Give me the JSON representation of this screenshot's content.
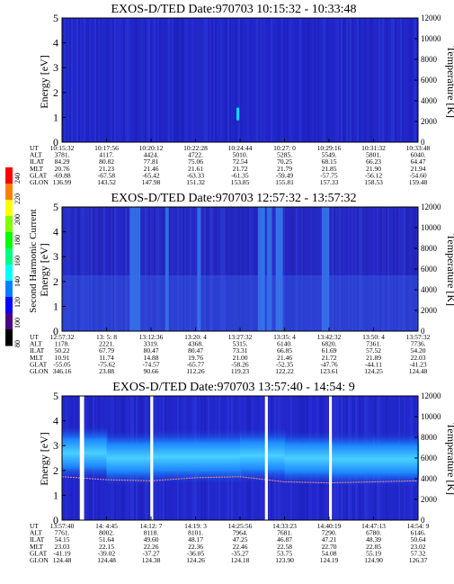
{
  "page": {
    "colorbar": {
      "label": "Second Harmonic Current",
      "ticks": [
        "240",
        "220",
        "200",
        "180",
        "160",
        "140",
        "120",
        "100",
        "80"
      ],
      "colors": [
        "#ff0000",
        "#ff8000",
        "#ffff00",
        "#80ff00",
        "#00ff00",
        "#00ff80",
        "#00ffff",
        "#0080ff",
        "#0000ff",
        "#4b0082",
        "#000000"
      ]
    },
    "panels": [
      {
        "title": "EXOS-D/TED   Date:970703  10:15:32 - 10:33:48",
        "ylabel_left": "Energy [eV]",
        "ylabel_right": "Temperature [K]",
        "y_ticks_left": [
          "0",
          "1",
          "2",
          "3",
          "4",
          "5"
        ],
        "y_ticks_right": [
          "0",
          "2000",
          "4000",
          "6000",
          "8000",
          "10000",
          "12000"
        ],
        "row_labels": [
          "UT",
          "ALT",
          "ILAT",
          "MLT",
          "GLAT",
          "GLON"
        ],
        "columns": [
          [
            "10:15:32",
            "3781.",
            "84.29",
            "20.76",
            "-69.88",
            "136.99"
          ],
          [
            "10:17:56",
            "4117.",
            "80.82",
            "21.23",
            "-67.58",
            "143.52"
          ],
          [
            "10:20:12",
            "4424.",
            "77.81",
            "21.46",
            "-65.42",
            "147.98"
          ],
          [
            "10:22:28",
            "4722.",
            "75.06",
            "21.61",
            "-63.33",
            "151.32"
          ],
          [
            "10:24:44",
            "5010.",
            "72.54",
            "21.72",
            "-61.35",
            "153.85"
          ],
          [
            "10:27: 0",
            "5285.",
            "70.25",
            "21.79",
            "-59.49",
            "155.81"
          ],
          [
            "10:29:16",
            "5549.",
            "68.15",
            "21.85",
            "-57.75",
            "157.33"
          ],
          [
            "10:31:32",
            "5801.",
            "66.23",
            "21.90",
            "-56.12",
            "158.53"
          ],
          [
            "10:33:48",
            "6040.",
            "64.47",
            "21.94",
            "-54.60",
            "159.48"
          ]
        ]
      },
      {
        "title": "EXOS-D/TED   Date:970703  12:57:32 - 13:57:32",
        "ylabel_left": "Energy [eV]",
        "ylabel_right": "Temperature [K]",
        "y_ticks_left": [
          "0",
          "1",
          "2",
          "3",
          "4",
          "5"
        ],
        "y_ticks_right": [
          "0",
          "2000",
          "4000",
          "6000",
          "8000",
          "10000",
          "12000"
        ],
        "row_labels": [
          "UT",
          "ALT",
          "ILAT",
          "MLT",
          "GLAT",
          "GLON"
        ],
        "columns": [
          [
            "12:57:32",
            "1178.",
            "50.22",
            "10.91",
            "-55.05",
            "346.16"
          ],
          [
            "13: 5: 8",
            "2221.",
            "67.79",
            "11.74",
            "-75.62",
            "23.88"
          ],
          [
            "13:12:36",
            "3319.",
            "80.47",
            "14.88",
            "-74.57",
            "90.66"
          ],
          [
            "13:20: 4",
            "4368.",
            "80.47",
            "19.76",
            "-65.77",
            "112.26"
          ],
          [
            "13:27:32",
            "5315.",
            "73.31",
            "21.00",
            "-58.26",
            "119.23"
          ],
          [
            "13:35: 4",
            "6140.",
            "66.85",
            "21.46",
            "-52.35",
            "122.22"
          ],
          [
            "13:42:32",
            "6820.",
            "61.69",
            "21.72",
            "-47.76",
            "123.61"
          ],
          [
            "13:50: 4",
            "7361.",
            "57.52",
            "21.89",
            "-44.11",
            "124.25"
          ],
          [
            "13:57:32",
            "7736.",
            "54.20",
            "22.03",
            "-41.23",
            "124.48"
          ]
        ]
      },
      {
        "title": "EXOS-D/TED   Date:970703  13:57:40 - 14:54: 9",
        "ylabel_left": "Energy [eV]",
        "ylabel_right": "Temperature [K]",
        "y_ticks_left": [
          "0",
          "1",
          "2",
          "3",
          "4",
          "5"
        ],
        "y_ticks_right": [
          "0",
          "2000",
          "4000",
          "6000",
          "8000",
          "10000",
          "12000"
        ],
        "row_labels": [
          "UT",
          "ALT",
          "ILAT",
          "MLT",
          "GLAT",
          "GLON"
        ],
        "columns": [
          [
            "13:57:40",
            "7761.",
            "54.15",
            "23.03",
            "-41.19",
            "124.48"
          ],
          [
            "14: 4:45",
            "8002.",
            "51.64",
            "22.15",
            "-39.02",
            "124.48"
          ],
          [
            "14:12: 7",
            "8118.",
            "49.60",
            "22.26",
            "-37.27",
            "124.38"
          ],
          [
            "14:19: 3",
            "8101.",
            "48.17",
            "22.36",
            "-36.05",
            "124.26"
          ],
          [
            "14:25:56",
            "7964.",
            "47.25",
            "22.46",
            "-35.27",
            "124.18"
          ],
          [
            "14:33:23",
            "7681.",
            "46.87",
            "22.58",
            "53.75",
            "123.90"
          ],
          [
            "14:40:19",
            "7290.",
            "47.21",
            "22.70",
            "54.08",
            "124.19"
          ],
          [
            "14:47:13",
            "6780.",
            "48.39",
            "22.85",
            "55.19",
            "124.90"
          ],
          [
            "14:54: 9",
            "6146.",
            "50.64",
            "23.02",
            "57.32",
            "126.37"
          ]
        ]
      }
    ]
  },
  "chart_data": [
    {
      "type": "heatmap",
      "title": "EXOS-D/TED   Date:970703  10:15:32 - 10:33:48",
      "xlabel": "UT",
      "ylabel": "Energy [eV]",
      "ylabel_right": "Temperature [K]",
      "x": [
        "10:15:32",
        "10:17:56",
        "10:20:12",
        "10:22:28",
        "10:24:44",
        "10:27: 0",
        "10:29:16",
        "10:31:32",
        "10:33:48"
      ],
      "ylim": [
        0,
        5
      ],
      "ylim_right": [
        0,
        12000
      ],
      "background_level": 100,
      "features": [
        {
          "ut": "10:24:44",
          "energy_ev": 1.1,
          "level": 130
        }
      ],
      "colorbar": {
        "label": "Second Harmonic Current",
        "range": [
          80,
          240
        ]
      }
    },
    {
      "type": "heatmap",
      "title": "EXOS-D/TED   Date:970703  12:57:32 - 13:57:32",
      "xlabel": "UT",
      "ylabel": "Energy [eV]",
      "ylabel_right": "Temperature [K]",
      "x": [
        "12:57:32",
        "13: 5: 8",
        "13:12:36",
        "13:20: 4",
        "13:27:32",
        "13:35: 4",
        "13:42:32",
        "13:50: 4",
        "13:57:32"
      ],
      "ylim": [
        0,
        5
      ],
      "ylim_right": [
        0,
        12000
      ],
      "background_level": 105,
      "bright_bands_ut": [
        "13:12:36",
        "13:35: 4",
        "13:42:32"
      ],
      "colorbar": {
        "label": "Second Harmonic Current",
        "range": [
          80,
          240
        ]
      }
    },
    {
      "type": "heatmap",
      "title": "EXOS-D/TED   Date:970703  13:57:40 - 14:54: 9",
      "xlabel": "UT",
      "ylabel": "Energy [eV]",
      "ylabel_right": "Temperature [K]",
      "x": [
        "13:57:40",
        "14: 4:45",
        "14:12: 7",
        "14:19: 3",
        "14:25:56",
        "14:33:23",
        "14:40:19",
        "14:47:13",
        "14:54: 9"
      ],
      "ylim": [
        0,
        5
      ],
      "ylim_right": [
        0,
        12000
      ],
      "background_level": 95,
      "band_center_ev": [
        2.7,
        2.5,
        2.55,
        2.55,
        2.6,
        2.5,
        2.45,
        2.45,
        2.45
      ],
      "temperature_k": [
        4200,
        3900,
        3800,
        4100,
        4200,
        3700,
        3600,
        3700,
        3800
      ],
      "data_gaps_ut": [
        "13:57:40",
        "14:12: 7",
        "14:33:23",
        "14:40:19"
      ],
      "colorbar": {
        "label": "Second Harmonic Current",
        "range": [
          80,
          240
        ]
      }
    }
  ]
}
